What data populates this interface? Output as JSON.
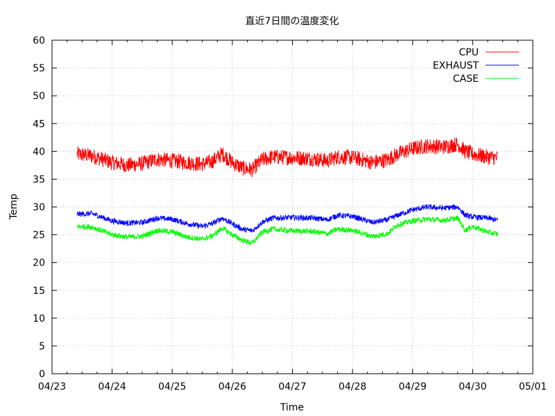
{
  "chart_data": {
    "type": "line",
    "title": "直近7日間の温度変化",
    "xlabel": "Time",
    "ylabel": "Temp",
    "ylim": [
      0,
      60
    ],
    "yticks": [
      0,
      5,
      10,
      15,
      20,
      25,
      30,
      35,
      40,
      45,
      50,
      55,
      60
    ],
    "xlim": [
      "04/23",
      "05/01"
    ],
    "xticks": [
      "04/23",
      "04/24",
      "04/25",
      "04/26",
      "04/27",
      "04/28",
      "04/29",
      "04/30",
      "05/01"
    ],
    "grid": true,
    "legend": "top-right",
    "series": [
      {
        "name": "CPU",
        "color": "#ff0000",
        "noise": 1.4,
        "points": [
          [
            "04/23 10:00",
            39.5
          ],
          [
            "04/23 16:00",
            39.2
          ],
          [
            "04/24 00:00",
            38.0
          ],
          [
            "04/24 06:00",
            37.5
          ],
          [
            "04/24 12:00",
            37.8
          ],
          [
            "04/24 18:00",
            38.6
          ],
          [
            "04/25 00:00",
            38.3
          ],
          [
            "04/25 06:00",
            38.0
          ],
          [
            "04/25 12:00",
            37.7
          ],
          [
            "04/25 16:00",
            38.2
          ],
          [
            "04/25 20:00",
            39.6
          ],
          [
            "04/26 00:00",
            38.0
          ],
          [
            "04/26 04:00",
            37.0
          ],
          [
            "04/26 08:00",
            36.7
          ],
          [
            "04/26 12:00",
            38.5
          ],
          [
            "04/26 16:00",
            39.0
          ],
          [
            "04/27 00:00",
            38.9
          ],
          [
            "04/27 08:00",
            38.7
          ],
          [
            "04/27 14:00",
            38.3
          ],
          [
            "04/27 18:00",
            39.0
          ],
          [
            "04/28 00:00",
            38.9
          ],
          [
            "04/28 08:00",
            38.0
          ],
          [
            "04/28 14:00",
            38.5
          ],
          [
            "04/28 18:00",
            39.5
          ],
          [
            "04/29 00:00",
            40.5
          ],
          [
            "04/29 06:00",
            41.0
          ],
          [
            "04/29 12:00",
            40.8
          ],
          [
            "04/29 18:00",
            41.3
          ],
          [
            "04/29 21:00",
            40.0
          ],
          [
            "04/30 00:00",
            39.5
          ],
          [
            "04/30 06:00",
            39.0
          ],
          [
            "04/30 10:00",
            38.8
          ]
        ]
      },
      {
        "name": "EXHAUST",
        "color": "#0000ff",
        "noise": 0.5,
        "points": [
          [
            "04/23 10:00",
            28.7
          ],
          [
            "04/23 16:00",
            28.8
          ],
          [
            "04/24 00:00",
            27.5
          ],
          [
            "04/24 06:00",
            27.1
          ],
          [
            "04/24 12:00",
            27.2
          ],
          [
            "04/24 18:00",
            28.0
          ],
          [
            "04/25 00:00",
            27.8
          ],
          [
            "04/25 06:00",
            27.0
          ],
          [
            "04/25 12:00",
            26.5
          ],
          [
            "04/25 16:00",
            27.0
          ],
          [
            "04/25 20:00",
            28.0
          ],
          [
            "04/26 00:00",
            27.0
          ],
          [
            "04/26 04:00",
            26.0
          ],
          [
            "04/26 08:00",
            25.7
          ],
          [
            "04/26 12:00",
            27.3
          ],
          [
            "04/26 16:00",
            28.0
          ],
          [
            "04/27 00:00",
            28.1
          ],
          [
            "04/27 08:00",
            28.0
          ],
          [
            "04/27 14:00",
            27.7
          ],
          [
            "04/27 18:00",
            28.5
          ],
          [
            "04/28 00:00",
            28.3
          ],
          [
            "04/28 08:00",
            27.2
          ],
          [
            "04/28 14:00",
            27.7
          ],
          [
            "04/28 18:00",
            28.5
          ],
          [
            "04/29 00:00",
            29.5
          ],
          [
            "04/29 06:00",
            30.0
          ],
          [
            "04/29 12:00",
            29.8
          ],
          [
            "04/29 18:00",
            30.0
          ],
          [
            "04/29 21:00",
            28.5
          ],
          [
            "04/30 00:00",
            28.2
          ],
          [
            "04/30 06:00",
            28.0
          ],
          [
            "04/30 10:00",
            27.6
          ]
        ]
      },
      {
        "name": "CASE",
        "color": "#00ff00",
        "noise": 0.5,
        "points": [
          [
            "04/23 10:00",
            26.5
          ],
          [
            "04/23 16:00",
            26.4
          ],
          [
            "04/24 00:00",
            25.0
          ],
          [
            "04/24 06:00",
            24.6
          ],
          [
            "04/24 12:00",
            24.7
          ],
          [
            "04/24 18:00",
            25.8
          ],
          [
            "04/25 00:00",
            25.5
          ],
          [
            "04/25 06:00",
            24.6
          ],
          [
            "04/25 12:00",
            24.2
          ],
          [
            "04/25 16:00",
            24.8
          ],
          [
            "04/25 20:00",
            26.2
          ],
          [
            "04/26 00:00",
            25.0
          ],
          [
            "04/26 04:00",
            24.0
          ],
          [
            "04/26 08:00",
            23.5
          ],
          [
            "04/26 12:00",
            25.5
          ],
          [
            "04/26 16:00",
            26.0
          ],
          [
            "04/27 00:00",
            25.7
          ],
          [
            "04/27 08:00",
            25.6
          ],
          [
            "04/27 14:00",
            25.2
          ],
          [
            "04/27 18:00",
            26.0
          ],
          [
            "04/28 00:00",
            25.8
          ],
          [
            "04/28 08:00",
            24.7
          ],
          [
            "04/28 14:00",
            25.2
          ],
          [
            "04/28 18:00",
            26.8
          ],
          [
            "04/29 00:00",
            27.5
          ],
          [
            "04/29 06:00",
            27.8
          ],
          [
            "04/29 12:00",
            27.6
          ],
          [
            "04/29 18:00",
            28.0
          ],
          [
            "04/29 21:00",
            25.8
          ],
          [
            "04/30 00:00",
            26.5
          ],
          [
            "04/30 06:00",
            25.5
          ],
          [
            "04/30 10:00",
            25.1
          ]
        ]
      }
    ]
  }
}
